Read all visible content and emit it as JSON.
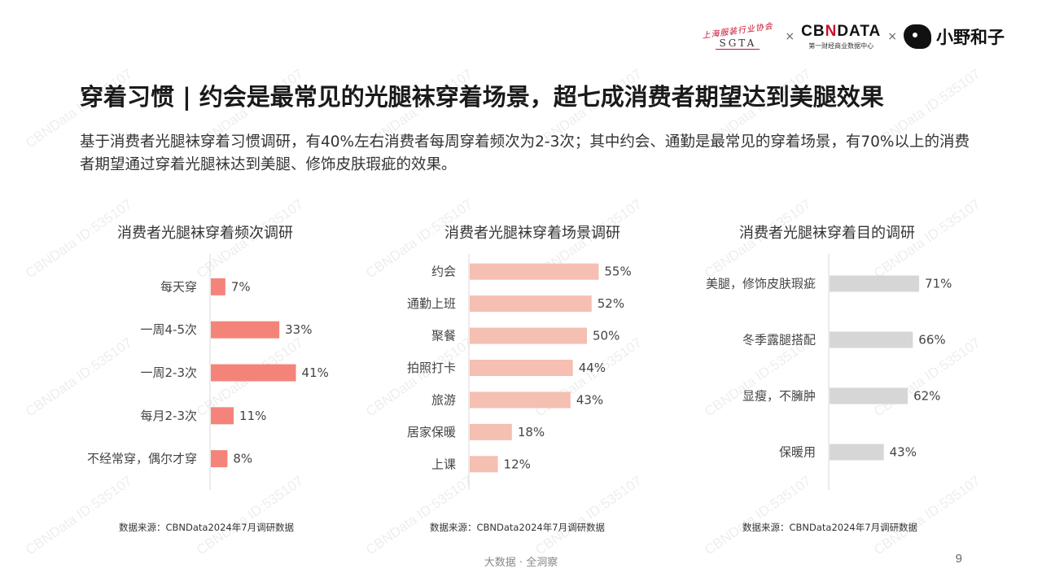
{
  "header": {
    "logos": {
      "sgta_script": "上海服装行业协会",
      "sgta_text": "SGTA",
      "separator": "×",
      "cbn_main_pre": "CB",
      "cbn_main_n": "N",
      "cbn_main_post": "DATA",
      "cbn_sub": "第一财经商业数据中心",
      "xyhz_text": "小野和子"
    }
  },
  "title": "穿着习惯 | 约会是最常见的光腿袜穿着场景，超七成消费者期望达到美腿效果",
  "description": "基于消费者光腿袜穿着习惯调研，有40%左右消费者每周穿着频次为2-3次；其中约会、通勤是最常见的穿着场景，有70%以上的消费者期望通过穿着光腿袜达到美腿、修饰皮肤瑕疵的效果。",
  "watermark_text": "CBNData ID:535107",
  "chart_data": [
    {
      "type": "bar",
      "orientation": "horizontal",
      "title": "消费者光腿袜穿着频次调研",
      "categories": [
        "每天穿",
        "一周4-5次",
        "一周2-3次",
        "每月2-3次",
        "不经常穿，偶尔才穿"
      ],
      "values": [
        7,
        33,
        41,
        11,
        8
      ],
      "value_labels": [
        "7%",
        "33%",
        "41%",
        "11%",
        "8%"
      ],
      "unit": "%",
      "color": "#f4847a",
      "source": "数据来源：CBNData2024年7月调研数据"
    },
    {
      "type": "bar",
      "orientation": "horizontal",
      "title": "消费者光腿袜穿着场景调研",
      "categories": [
        "约会",
        "通勤上班",
        "聚餐",
        "拍照打卡",
        "旅游",
        "居家保暖",
        "上课"
      ],
      "values": [
        55,
        52,
        50,
        44,
        43,
        18,
        12
      ],
      "value_labels": [
        "55%",
        "52%",
        "50%",
        "44%",
        "43%",
        "18%",
        "12%"
      ],
      "unit": "%",
      "color": "#f5bfb2",
      "source": "数据来源：CBNData2024年7月调研数据"
    },
    {
      "type": "bar",
      "orientation": "horizontal",
      "title": "消费者光腿袜穿着目的调研",
      "categories": [
        "美腿，修饰皮肤瑕疵",
        "冬季露腿搭配",
        "显瘦，不臃肿",
        "保暖用"
      ],
      "values": [
        71,
        66,
        62,
        43
      ],
      "value_labels": [
        "71%",
        "66%",
        "62%",
        "43%"
      ],
      "unit": "%",
      "color": "#d6d6d6",
      "source": "数据来源：CBNData2024年7月调研数据"
    }
  ],
  "footer": {
    "center": "大数据 · 全洞察",
    "page_number": "9"
  }
}
